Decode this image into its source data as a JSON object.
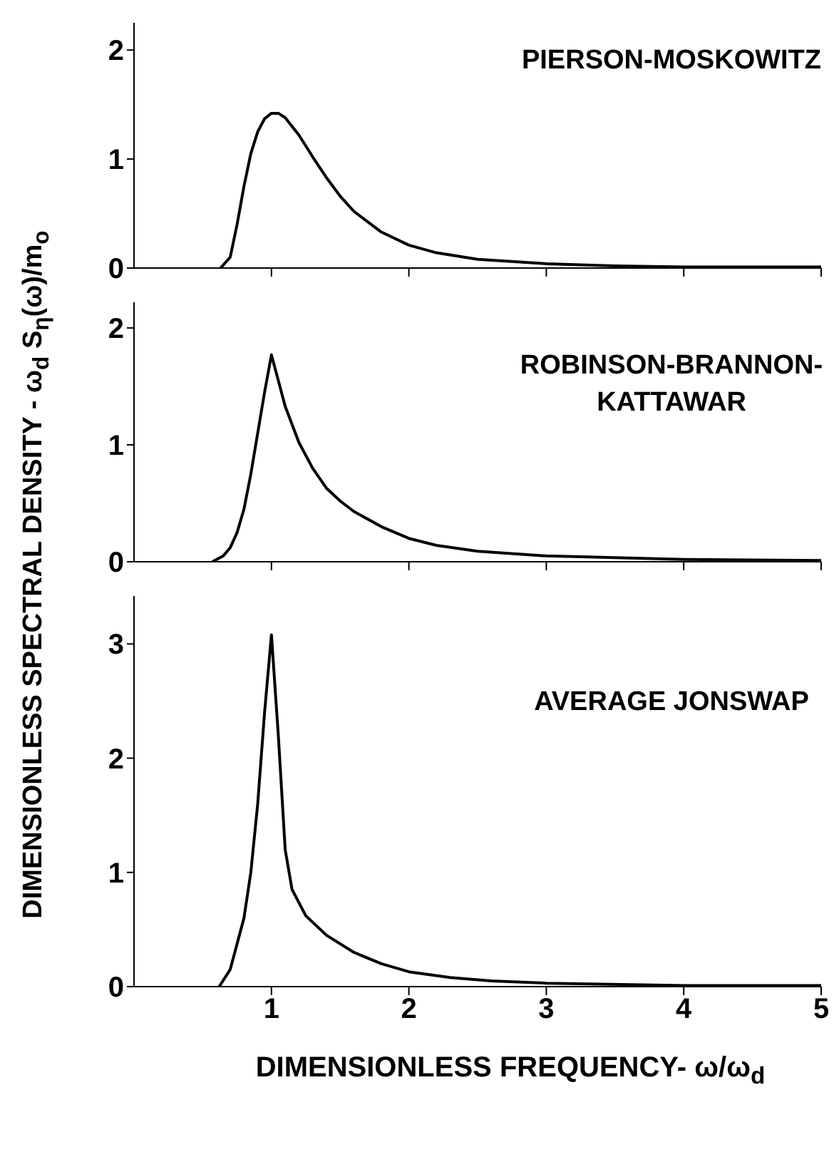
{
  "chart_data": [
    {
      "type": "line",
      "title": "PIERSON-MOSKOWITZ",
      "ylabel": "DIMENSIONLESS SPECTRAL DENSITY - ω$_{d}$ S$_{η}$(ω)/m$_{o}$",
      "xlim": [
        0,
        5
      ],
      "xticks": [
        1,
        2,
        3,
        4,
        5
      ],
      "ylim": [
        0,
        2.25
      ],
      "yticks": [
        0,
        1,
        2
      ],
      "tick_labels": "y",
      "grid": false,
      "legend": false,
      "marker": "none",
      "line_style": "solid",
      "x": [
        0.63,
        0.7,
        0.75,
        0.8,
        0.85,
        0.9,
        0.95,
        1.0,
        1.05,
        1.1,
        1.2,
        1.3,
        1.4,
        1.5,
        1.6,
        1.8,
        2.0,
        2.2,
        2.5,
        3.0,
        3.5,
        4.0,
        5.0
      ],
      "series": [
        {
          "color": "#000000",
          "values": [
            0,
            0.1,
            0.4,
            0.75,
            1.05,
            1.25,
            1.37,
            1.42,
            1.42,
            1.38,
            1.22,
            1.02,
            0.83,
            0.66,
            0.52,
            0.33,
            0.21,
            0.14,
            0.08,
            0.04,
            0.02,
            0.01,
            0.01
          ]
        }
      ]
    },
    {
      "type": "line",
      "title": "ROBINSON-BRANNON-KATTAWAR",
      "xlim": [
        0,
        5
      ],
      "xticks": [
        1,
        2,
        3,
        4,
        5
      ],
      "ylim": [
        0,
        2.22
      ],
      "yticks": [
        0,
        1,
        2
      ],
      "tick_labels": "y",
      "grid": false,
      "legend": false,
      "marker": "none",
      "line_style": "solid",
      "x": [
        0.57,
        0.65,
        0.7,
        0.75,
        0.8,
        0.85,
        0.9,
        0.95,
        1.0,
        1.05,
        1.1,
        1.2,
        1.3,
        1.4,
        1.5,
        1.6,
        1.8,
        2.0,
        2.2,
        2.5,
        3.0,
        4.0,
        5.0
      ],
      "series": [
        {
          "color": "#000000",
          "values": [
            0,
            0.05,
            0.12,
            0.25,
            0.45,
            0.75,
            1.1,
            1.45,
            1.77,
            1.55,
            1.33,
            1.02,
            0.8,
            0.63,
            0.52,
            0.43,
            0.3,
            0.2,
            0.14,
            0.09,
            0.05,
            0.02,
            0.01
          ]
        }
      ]
    },
    {
      "type": "line",
      "title": "AVERAGE JONSWAP",
      "xlabel": "DIMENSIONLESS FREQUENCY- ω/ω$_{d}$",
      "xlim": [
        0,
        5
      ],
      "xticks": [
        1,
        2,
        3,
        4,
        5
      ],
      "ylim": [
        0,
        3.42
      ],
      "yticks": [
        0,
        1,
        2,
        3
      ],
      "grid": false,
      "legend": false,
      "marker": "none",
      "line_style": "solid",
      "x": [
        0.62,
        0.7,
        0.8,
        0.85,
        0.9,
        0.95,
        1.0,
        1.05,
        1.1,
        1.15,
        1.25,
        1.4,
        1.6,
        1.8,
        2.0,
        2.3,
        2.6,
        3.0,
        4.0,
        5.0
      ],
      "series": [
        {
          "color": "#000000",
          "values": [
            0,
            0.15,
            0.6,
            1.0,
            1.6,
            2.4,
            3.08,
            2.2,
            1.2,
            0.85,
            0.62,
            0.45,
            0.3,
            0.2,
            0.13,
            0.08,
            0.05,
            0.03,
            0.01,
            0.01
          ]
        }
      ]
    }
  ]
}
